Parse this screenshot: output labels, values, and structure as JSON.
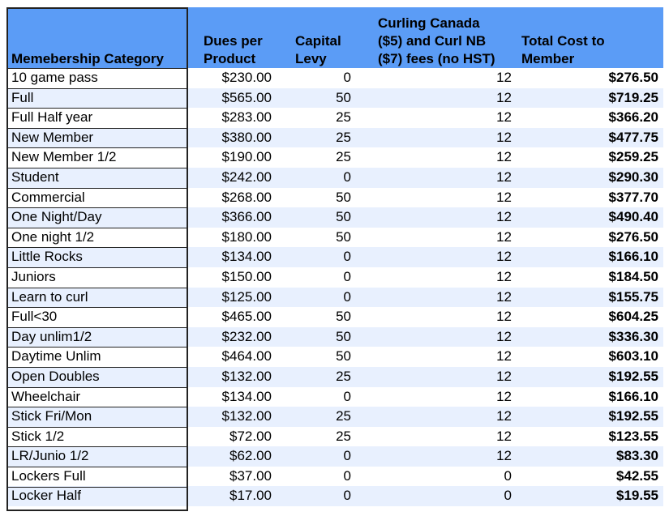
{
  "colors": {
    "header_bg": "#5b9cf6",
    "band": "#e8f0fe",
    "border": "#222222"
  },
  "table": {
    "headers": [
      "Memebership Category",
      "Dues per\nProduct",
      "Capital\nLevy",
      "Curling Canada\n($5) and Curl NB\n($7) fees (no HST)",
      "Total Cost to\nMember"
    ],
    "rows": [
      [
        "10 game pass",
        "$230.00",
        "0",
        "12",
        "$276.50"
      ],
      [
        "Full",
        "$565.00",
        "50",
        "12",
        "$719.25"
      ],
      [
        "Full Half year",
        "$283.00",
        "25",
        "12",
        "$366.20"
      ],
      [
        "New Member",
        "$380.00",
        "25",
        "12",
        "$477.75"
      ],
      [
        "New Member 1/2",
        "$190.00",
        "25",
        "12",
        "$259.25"
      ],
      [
        "Student",
        "$242.00",
        "0",
        "12",
        "$290.30"
      ],
      [
        "Commercial",
        "$268.00",
        "50",
        "12",
        "$377.70"
      ],
      [
        "One Night/Day",
        "$366.00",
        "50",
        "12",
        "$490.40"
      ],
      [
        "One night 1/2",
        "$180.00",
        "50",
        "12",
        "$276.50"
      ],
      [
        "Little Rocks",
        "$134.00",
        "0",
        "12",
        "$166.10"
      ],
      [
        "Juniors",
        "$150.00",
        "0",
        "12",
        "$184.50"
      ],
      [
        "Learn to curl",
        "$125.00",
        "0",
        "12",
        "$155.75"
      ],
      [
        "Full<30",
        "$465.00",
        "50",
        "12",
        "$604.25"
      ],
      [
        "Day unlim1/2",
        "$232.00",
        "50",
        "12",
        "$336.30"
      ],
      [
        "Daytime Unlim",
        "$464.00",
        "50",
        "12",
        "$603.10"
      ],
      [
        "Open Doubles",
        "$132.00",
        "25",
        "12",
        "$192.55"
      ],
      [
        "Wheelchair",
        "$134.00",
        "0",
        "12",
        "$166.10"
      ],
      [
        "Stick Fri/Mon",
        "$132.00",
        "25",
        "12",
        "$192.55"
      ],
      [
        "Stick 1/2",
        "$72.00",
        "25",
        "12",
        "$123.55"
      ],
      [
        "LR/Junio 1/2",
        "$62.00",
        "0",
        "12",
        "$83.30"
      ],
      [
        "Lockers Full",
        "$37.00",
        "0",
        "0",
        "$42.55"
      ],
      [
        "Locker Half",
        "$17.00",
        "0",
        "0",
        "$19.55"
      ]
    ]
  }
}
